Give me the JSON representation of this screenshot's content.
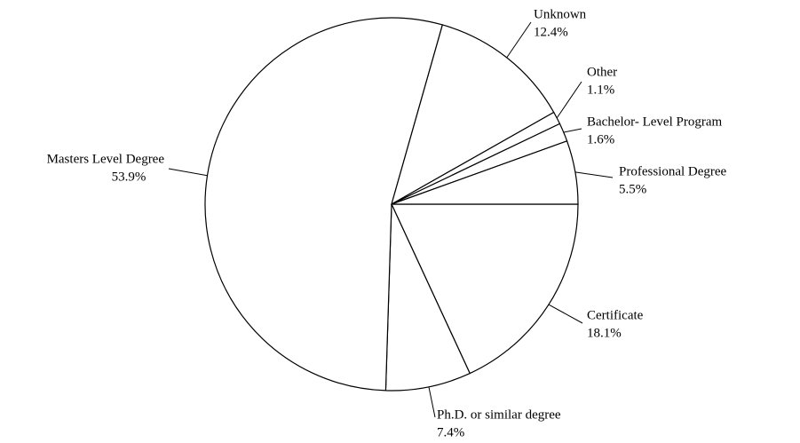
{
  "chart_data": {
    "type": "pie",
    "categories": [
      "Certificate",
      "Ph.D. or similar degree",
      "Masters Level Degree",
      "Unknown",
      "Other",
      "Bachelor- Level Program",
      "Professional Degree"
    ],
    "values": [
      18.1,
      7.4,
      53.9,
      12.4,
      1.1,
      1.6,
      5.5
    ],
    "value_labels": [
      "18.1%",
      "7.4%",
      "53.9%",
      "12.4%",
      "1.1%",
      "1.6%",
      "5.5%"
    ],
    "color": "#ffffff"
  }
}
